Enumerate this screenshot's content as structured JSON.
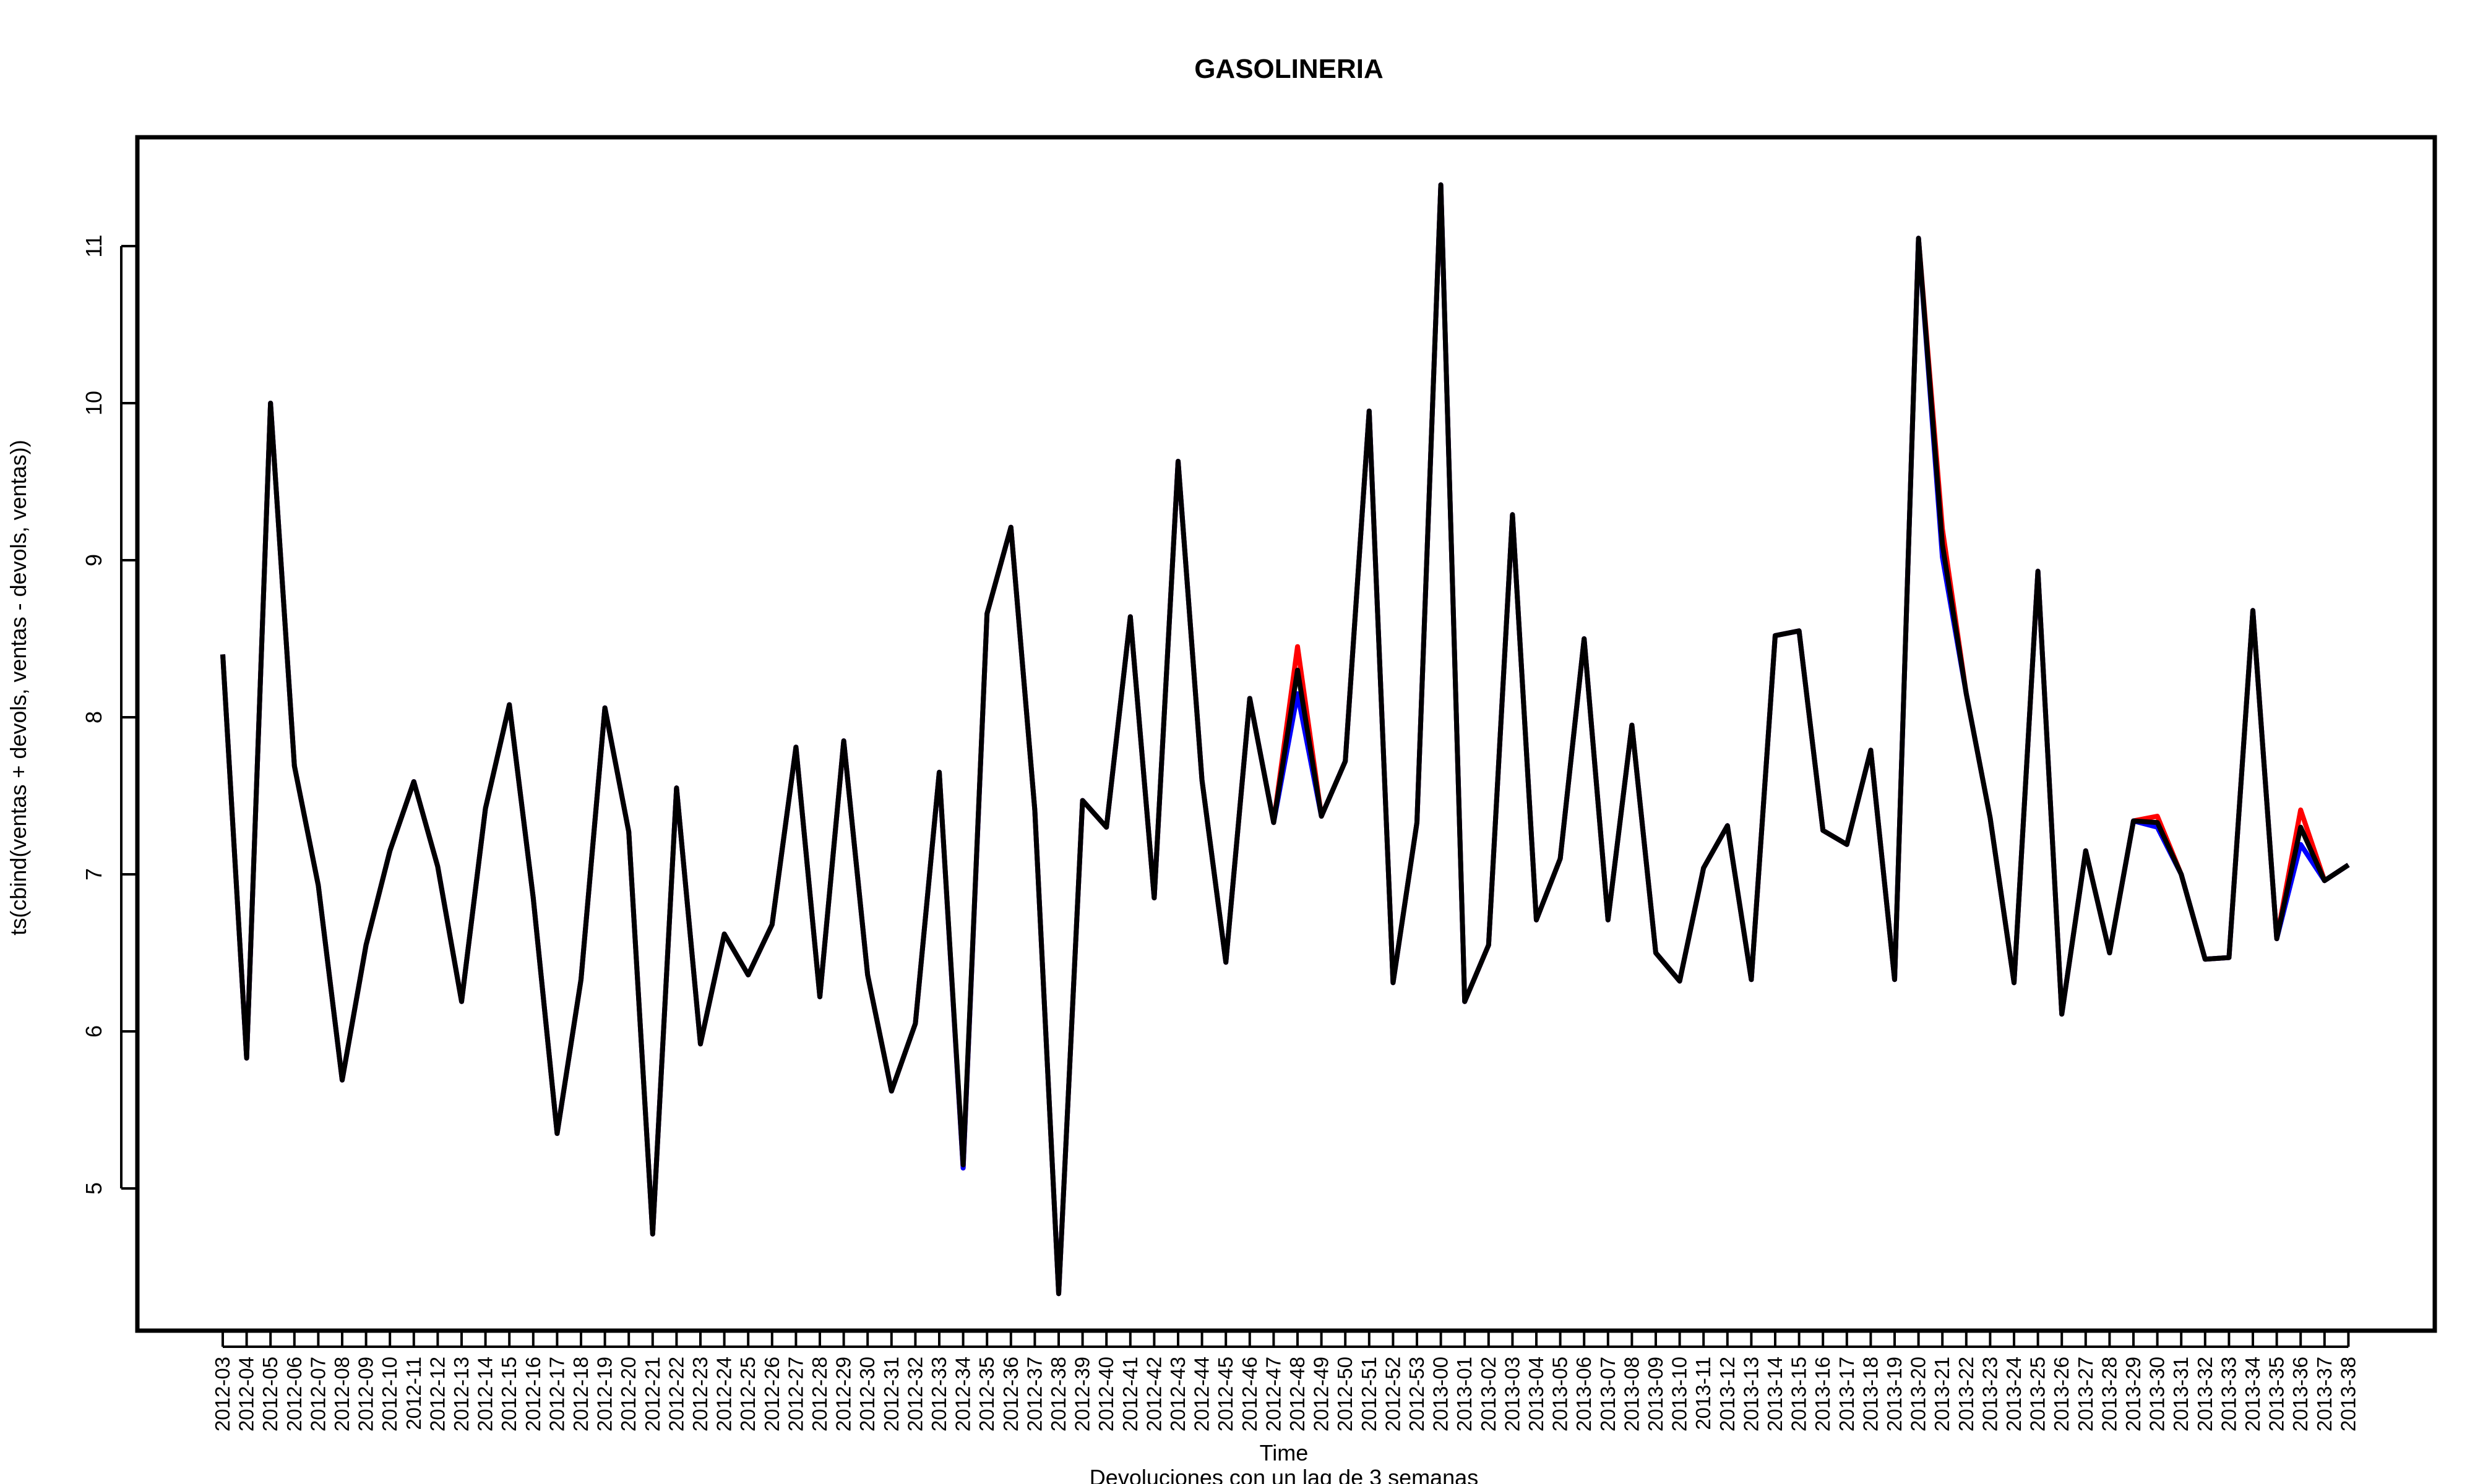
{
  "chart_data": {
    "type": "line",
    "title": "GASOLINERIA",
    "xlabel": "Time",
    "ylabel": "ts(cbind(ventas + devols, ventas - devols, ventas))",
    "subtitle": "Devoluciones con un lag de 3 semanas",
    "ylim": [
      4.2,
      11.7
    ],
    "yticks": [
      5,
      6,
      7,
      8,
      9,
      10,
      11
    ],
    "grid": false,
    "legend": "none",
    "categories": [
      "2012-03",
      "2012-04",
      "2012-05",
      "2012-06",
      "2012-07",
      "2012-08",
      "2012-09",
      "2012-10",
      "2012-11",
      "2012-12",
      "2012-13",
      "2012-14",
      "2012-15",
      "2012-16",
      "2012-17",
      "2012-18",
      "2012-19",
      "2012-20",
      "2012-21",
      "2012-22",
      "2012-23",
      "2012-24",
      "2012-25",
      "2012-26",
      "2012-27",
      "2012-28",
      "2012-29",
      "2012-30",
      "2012-31",
      "2012-32",
      "2012-33",
      "2012-34",
      "2012-35",
      "2012-36",
      "2012-37",
      "2012-38",
      "2012-39",
      "2012-40",
      "2012-41",
      "2012-42",
      "2012-43",
      "2012-44",
      "2012-45",
      "2012-46",
      "2012-47",
      "2012-48",
      "2012-49",
      "2012-50",
      "2012-51",
      "2012-52",
      "2012-53",
      "2013-00",
      "2013-01",
      "2013-02",
      "2013-03",
      "2013-04",
      "2013-05",
      "2013-06",
      "2013-07",
      "2013-08",
      "2013-09",
      "2013-10",
      "2013-11",
      "2013-12",
      "2013-13",
      "2013-14",
      "2013-15",
      "2013-16",
      "2013-17",
      "2013-18",
      "2013-19",
      "2013-20",
      "2013-21",
      "2013-22",
      "2013-23",
      "2013-24",
      "2013-25",
      "2013-26",
      "2013-27",
      "2013-28",
      "2013-29",
      "2013-30",
      "2013-31",
      "2013-32",
      "2013-33",
      "2013-34",
      "2013-35",
      "2013-36",
      "2013-37",
      "2013-38"
    ],
    "series": [
      {
        "color": "#ff0000",
        "values": [
          8.4,
          5.83,
          10.0,
          7.69,
          6.93,
          5.69,
          6.55,
          7.15,
          7.59,
          7.05,
          6.19,
          7.42,
          8.08,
          6.85,
          5.35,
          6.33,
          8.06,
          7.27,
          4.71,
          7.55,
          5.92,
          6.62,
          6.36,
          6.68,
          7.81,
          6.22,
          7.85,
          6.36,
          5.62,
          6.05,
          7.65,
          5.13,
          8.66,
          9.21,
          7.41,
          4.33,
          7.47,
          7.3,
          8.64,
          6.85,
          9.63,
          7.6,
          6.44,
          8.12,
          7.33,
          8.45,
          7.37,
          7.72,
          9.95,
          6.31,
          7.33,
          11.39,
          6.19,
          6.55,
          9.29,
          6.71,
          7.1,
          8.5,
          6.71,
          7.95,
          6.5,
          6.32,
          7.04,
          7.31,
          6.33,
          8.52,
          8.55,
          7.28,
          7.19,
          7.79,
          6.33,
          11.05,
          9.2,
          8.15,
          7.36,
          6.31,
          8.93,
          6.11,
          7.15,
          6.5,
          7.34,
          7.37,
          7.0,
          6.46,
          6.47,
          8.68,
          6.59,
          7.41,
          6.96,
          7.06
        ]
      },
      {
        "color": "#0000ff",
        "values": [
          8.4,
          5.83,
          10.0,
          7.69,
          6.93,
          5.69,
          6.55,
          7.15,
          7.59,
          7.05,
          6.19,
          7.42,
          8.08,
          6.85,
          5.35,
          6.33,
          8.06,
          7.27,
          4.71,
          7.55,
          5.92,
          6.62,
          6.36,
          6.68,
          7.81,
          6.22,
          7.85,
          6.36,
          5.62,
          6.05,
          7.65,
          5.13,
          8.66,
          9.21,
          7.41,
          4.33,
          7.47,
          7.3,
          8.64,
          6.85,
          9.63,
          7.6,
          6.44,
          8.12,
          7.33,
          8.15,
          7.37,
          7.72,
          9.95,
          6.31,
          7.33,
          11.39,
          6.19,
          6.55,
          9.29,
          6.71,
          7.1,
          8.5,
          6.71,
          7.95,
          6.5,
          6.32,
          7.04,
          7.31,
          6.33,
          8.52,
          8.55,
          7.28,
          7.19,
          7.79,
          6.33,
          11.05,
          9.02,
          8.15,
          7.36,
          6.31,
          8.93,
          6.11,
          7.15,
          6.5,
          7.34,
          7.3,
          7.0,
          6.46,
          6.47,
          8.68,
          6.59,
          7.19,
          6.96,
          7.06
        ]
      },
      {
        "color": "#000000",
        "values": [
          8.4,
          5.83,
          10.0,
          7.69,
          6.93,
          5.69,
          6.55,
          7.15,
          7.59,
          7.05,
          6.19,
          7.42,
          8.08,
          6.85,
          5.35,
          6.33,
          8.06,
          7.27,
          4.71,
          7.55,
          5.92,
          6.62,
          6.36,
          6.68,
          7.81,
          6.22,
          7.85,
          6.36,
          5.62,
          6.05,
          7.65,
          5.15,
          8.66,
          9.21,
          7.41,
          4.33,
          7.47,
          7.3,
          8.64,
          6.85,
          9.63,
          7.6,
          6.44,
          8.12,
          7.33,
          8.3,
          7.37,
          7.72,
          9.95,
          6.31,
          7.33,
          11.39,
          6.19,
          6.55,
          9.29,
          6.71,
          7.1,
          8.5,
          6.71,
          7.95,
          6.5,
          6.32,
          7.04,
          7.31,
          6.33,
          8.52,
          8.55,
          7.28,
          7.19,
          7.79,
          6.33,
          11.05,
          9.1,
          8.15,
          7.36,
          6.31,
          8.93,
          6.11,
          7.15,
          6.5,
          7.34,
          7.33,
          7.0,
          6.46,
          6.47,
          8.68,
          6.59,
          7.3,
          6.96,
          7.06
        ]
      }
    ]
  }
}
